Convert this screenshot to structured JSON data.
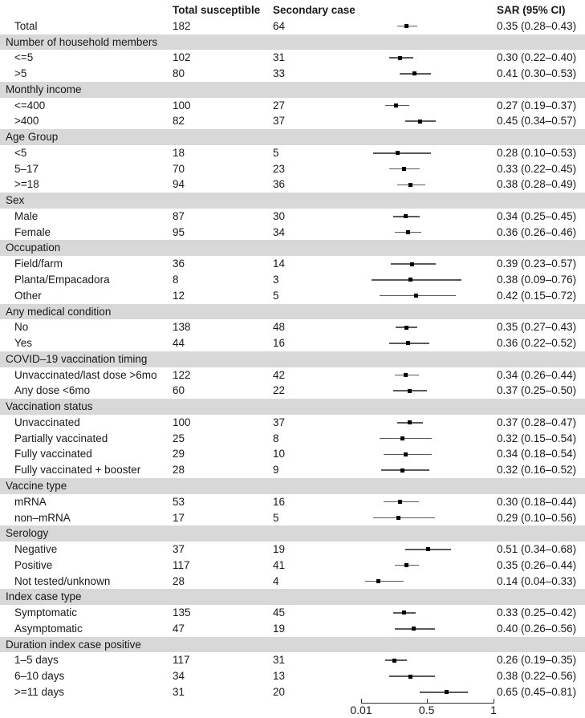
{
  "colors": {
    "section_band": "#d8d8d8",
    "text": "#1a1a1a",
    "ci_line": "#595959",
    "point_marker": "#000000",
    "axis": "#333333",
    "background": "#ffffff"
  },
  "chart_data": {
    "type": "forest",
    "title": "",
    "columns": {
      "label": "",
      "total_susceptible": "Total susceptible",
      "secondary_case": "Secondary case",
      "sar": "SAR (95% CI)"
    },
    "axis": {
      "scale": "linear",
      "range": [
        0.01,
        1
      ],
      "ticks": [
        0.01,
        0.5,
        1
      ],
      "tick_labels": [
        "0.01",
        "0.5",
        "1"
      ]
    },
    "rows": [
      {
        "type": "item",
        "label": "Total",
        "total_susceptible": "182",
        "secondary_case": "64",
        "est": 0.35,
        "lo": 0.28,
        "hi": 0.43,
        "sar": "0.35 (0.28–0.43)"
      },
      {
        "type": "section",
        "label": "Number of household members"
      },
      {
        "type": "item",
        "label": "<=5",
        "total_susceptible": "102",
        "secondary_case": "31",
        "est": 0.3,
        "lo": 0.22,
        "hi": 0.4,
        "sar": "0.30 (0.22–0.40)"
      },
      {
        "type": "item",
        "label": ">5",
        "total_susceptible": "80",
        "secondary_case": "33",
        "est": 0.41,
        "lo": 0.3,
        "hi": 0.53,
        "sar": "0.41 (0.30–0.53)"
      },
      {
        "type": "section",
        "label": "Monthly income"
      },
      {
        "type": "item",
        "label": "<=400",
        "total_susceptible": "100",
        "secondary_case": "27",
        "est": 0.27,
        "lo": 0.19,
        "hi": 0.37,
        "sar": "0.27 (0.19–0.37)"
      },
      {
        "type": "item",
        "label": ">400",
        "total_susceptible": "82",
        "secondary_case": "37",
        "est": 0.45,
        "lo": 0.34,
        "hi": 0.57,
        "sar": "0.45 (0.34–0.57)"
      },
      {
        "type": "section",
        "label": "Age Group"
      },
      {
        "type": "item",
        "label": "<5",
        "total_susceptible": "18",
        "secondary_case": "5",
        "est": 0.28,
        "lo": 0.1,
        "hi": 0.53,
        "sar": "0.28 (0.10–0.53)"
      },
      {
        "type": "item",
        "label": "5–17",
        "total_susceptible": "70",
        "secondary_case": "23",
        "est": 0.33,
        "lo": 0.22,
        "hi": 0.45,
        "sar": "0.33 (0.22–0.45)"
      },
      {
        "type": "item",
        "label": ">=18",
        "total_susceptible": "94",
        "secondary_case": "36",
        "est": 0.38,
        "lo": 0.28,
        "hi": 0.49,
        "sar": "0.38 (0.28–0.49)"
      },
      {
        "type": "section",
        "label": "Sex"
      },
      {
        "type": "item",
        "label": "Male",
        "total_susceptible": "87",
        "secondary_case": "30",
        "est": 0.34,
        "lo": 0.25,
        "hi": 0.45,
        "sar": "0.34 (0.25–0.45)"
      },
      {
        "type": "item",
        "label": "Female",
        "total_susceptible": "95",
        "secondary_case": "34",
        "est": 0.36,
        "lo": 0.26,
        "hi": 0.46,
        "sar": "0.36 (0.26–0.46)"
      },
      {
        "type": "section",
        "label": "Occupation"
      },
      {
        "type": "item",
        "label": "Field/farm",
        "total_susceptible": "36",
        "secondary_case": "14",
        "est": 0.39,
        "lo": 0.23,
        "hi": 0.57,
        "sar": "0.39 (0.23–0.57)"
      },
      {
        "type": "item",
        "label": "Planta/Empacadora",
        "total_susceptible": "8",
        "secondary_case": "3",
        "est": 0.38,
        "lo": 0.09,
        "hi": 0.76,
        "sar": "0.38 (0.09–0.76)"
      },
      {
        "type": "item",
        "label": "Other",
        "total_susceptible": "12",
        "secondary_case": "5",
        "est": 0.42,
        "lo": 0.15,
        "hi": 0.72,
        "sar": "0.42 (0.15–0.72)"
      },
      {
        "type": "section",
        "label": "Any medical condition"
      },
      {
        "type": "item",
        "label": "No",
        "total_susceptible": "138",
        "secondary_case": "48",
        "est": 0.35,
        "lo": 0.27,
        "hi": 0.43,
        "sar": "0.35 (0.27–0.43)"
      },
      {
        "type": "item",
        "label": "Yes",
        "total_susceptible": "44",
        "secondary_case": "16",
        "est": 0.36,
        "lo": 0.22,
        "hi": 0.52,
        "sar": "0.36 (0.22–0.52)"
      },
      {
        "type": "section",
        "label": "COVID–19 vaccination timing"
      },
      {
        "type": "item",
        "label": "Unvaccinated/last dose >6mo",
        "total_susceptible": "122",
        "secondary_case": "42",
        "est": 0.34,
        "lo": 0.26,
        "hi": 0.44,
        "sar": "0.34 (0.26–0.44)"
      },
      {
        "type": "item",
        "label": "Any dose <6mo",
        "total_susceptible": "60",
        "secondary_case": "22",
        "est": 0.37,
        "lo": 0.25,
        "hi": 0.5,
        "sar": "0.37 (0.25–0.50)"
      },
      {
        "type": "section",
        "label": "Vaccination status"
      },
      {
        "type": "item",
        "label": "Unvaccinated",
        "total_susceptible": "100",
        "secondary_case": "37",
        "est": 0.37,
        "lo": 0.28,
        "hi": 0.47,
        "sar": "0.37 (0.28–0.47)"
      },
      {
        "type": "item",
        "label": "Partially vaccinated",
        "total_susceptible": "25",
        "secondary_case": "8",
        "est": 0.32,
        "lo": 0.15,
        "hi": 0.54,
        "sar": "0.32 (0.15–0.54)"
      },
      {
        "type": "item",
        "label": "Fully vaccinated",
        "total_susceptible": "29",
        "secondary_case": "10",
        "est": 0.34,
        "lo": 0.18,
        "hi": 0.54,
        "sar": "0.34 (0.18–0.54)"
      },
      {
        "type": "item",
        "label": "Fully vaccinated + booster",
        "total_susceptible": "28",
        "secondary_case": "9",
        "est": 0.32,
        "lo": 0.16,
        "hi": 0.52,
        "sar": "0.32 (0.16–0.52)"
      },
      {
        "type": "section",
        "label": "Vaccine type"
      },
      {
        "type": "item",
        "label": "mRNA",
        "total_susceptible": "53",
        "secondary_case": "16",
        "est": 0.3,
        "lo": 0.18,
        "hi": 0.44,
        "sar": "0.30 (0.18–0.44)"
      },
      {
        "type": "item",
        "label": "non–mRNA",
        "total_susceptible": "17",
        "secondary_case": "5",
        "est": 0.29,
        "lo": 0.1,
        "hi": 0.56,
        "sar": "0.29 (0.10–0.56)"
      },
      {
        "type": "section",
        "label": "Serology"
      },
      {
        "type": "item",
        "label": "Negative",
        "total_susceptible": "37",
        "secondary_case": "19",
        "est": 0.51,
        "lo": 0.34,
        "hi": 0.68,
        "sar": "0.51 (0.34–0.68)"
      },
      {
        "type": "item",
        "label": "Positive",
        "total_susceptible": "117",
        "secondary_case": "41",
        "est": 0.35,
        "lo": 0.26,
        "hi": 0.44,
        "sar": "0.35 (0.26–0.44)"
      },
      {
        "type": "item",
        "label": "Not tested/unknown",
        "total_susceptible": "28",
        "secondary_case": "4",
        "est": 0.14,
        "lo": 0.04,
        "hi": 0.33,
        "sar": "0.14 (0.04–0.33)"
      },
      {
        "type": "section",
        "label": "Index case type"
      },
      {
        "type": "item",
        "label": "Symptomatic",
        "total_susceptible": "135",
        "secondary_case": "45",
        "est": 0.33,
        "lo": 0.25,
        "hi": 0.42,
        "sar": "0.33 (0.25–0.42)"
      },
      {
        "type": "item",
        "label": "Asymptomatic",
        "total_susceptible": "47",
        "secondary_case": "19",
        "est": 0.4,
        "lo": 0.26,
        "hi": 0.56,
        "sar": "0.40 (0.26–0.56)"
      },
      {
        "type": "section",
        "label": "Duration index case positive"
      },
      {
        "type": "item",
        "label": "1–5 days",
        "total_susceptible": "117",
        "secondary_case": "31",
        "est": 0.26,
        "lo": 0.19,
        "hi": 0.35,
        "sar": "0.26 (0.19–0.35)"
      },
      {
        "type": "item",
        "label": "6–10 days",
        "total_susceptible": "34",
        "secondary_case": "13",
        "est": 0.38,
        "lo": 0.22,
        "hi": 0.56,
        "sar": "0.38 (0.22–0.56)"
      },
      {
        "type": "item",
        "label": ">=11 days",
        "total_susceptible": "31",
        "secondary_case": "20",
        "est": 0.65,
        "lo": 0.45,
        "hi": 0.81,
        "sar": "0.65 (0.45–0.81)"
      }
    ]
  }
}
